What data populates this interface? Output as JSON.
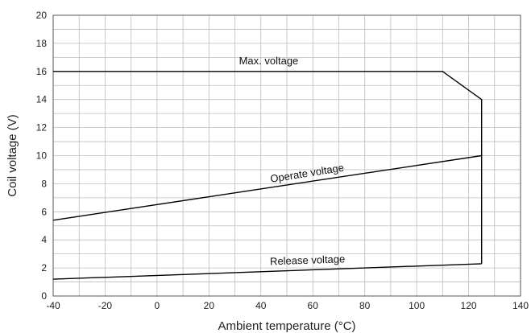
{
  "chart_data": {
    "type": "line",
    "title": "",
    "xlabel": "Ambient temperature (°C)",
    "ylabel": "Coil voltage (V)",
    "xlim": [
      -40,
      140
    ],
    "ylim": [
      0,
      20
    ],
    "grid": true,
    "x_ticks": [
      "-40",
      "-20",
      "0",
      "20",
      "40",
      "60",
      "80",
      "100",
      "120",
      "140"
    ],
    "y_ticks": [
      "0",
      "2",
      "4",
      "6",
      "8",
      "10",
      "12",
      "14",
      "16",
      "18",
      "20"
    ],
    "series": [
      {
        "x": [
          -40,
          110,
          125,
          125
        ],
        "y": [
          16,
          16,
          14,
          10
        ],
        "color": "#000000"
      },
      {
        "x": [
          -40,
          125,
          125
        ],
        "y": [
          5.4,
          10,
          2.3
        ],
        "color": "#000000"
      },
      {
        "x": [
          -40,
          125
        ],
        "y": [
          1.2,
          2.3
        ],
        "color": "#000000"
      }
    ],
    "annotations": [
      {
        "text": "Max. voltage",
        "x": 43,
        "y": 16.5,
        "rotate": 0
      },
      {
        "text": "Operate voltage",
        "x": 58,
        "y": 8.5,
        "rotate": -9
      },
      {
        "text": "Release voltage",
        "x": 58,
        "y": 2.3,
        "rotate": -2
      }
    ]
  }
}
